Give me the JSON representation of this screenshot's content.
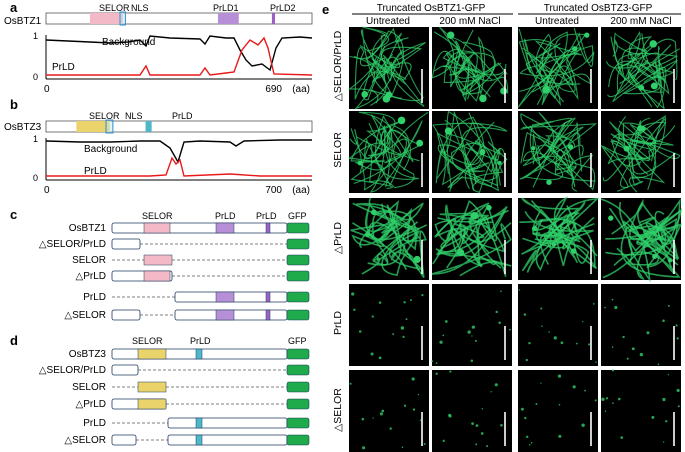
{
  "panels": {
    "a": {
      "letter": "a",
      "protein": "OsBTZ1",
      "length": 690,
      "domains": [
        {
          "label": "SELOR",
          "start": 114,
          "end": 200,
          "color": "#f4b9c6"
        },
        {
          "label": "NLS",
          "start": 192,
          "end": 206,
          "color": "#bfe6f5"
        },
        {
          "label": "PrLD1",
          "start": 446,
          "end": 500,
          "color": "#b78fd6"
        },
        {
          "label": "PrLD2",
          "start": 586,
          "end": 594,
          "color": "#9b62c5"
        }
      ],
      "legend": {
        "background": "Background",
        "prld": "PrLD"
      },
      "axis": {
        "y_top": "1",
        "y_bottom": "0",
        "x_left": "0",
        "x_right": "690",
        "unit": "(aa)"
      }
    },
    "b": {
      "letter": "b",
      "protein": "OsBTZ3",
      "length": 700,
      "domains": [
        {
          "label": "SELOR",
          "start": 80,
          "end": 168,
          "color": "#ead36a"
        },
        {
          "label": "NLS",
          "start": 158,
          "end": 176,
          "color": "#bfe6f5"
        },
        {
          "label": "PrLD",
          "start": 262,
          "end": 278,
          "color": "#4fb8c8"
        }
      ],
      "legend": {
        "background": "Background",
        "prld": "PrLD"
      },
      "axis": {
        "y_top": "1",
        "y_bottom": "0",
        "x_left": "0",
        "x_right": "700",
        "unit": "(aa)"
      }
    },
    "c": {
      "letter": "c",
      "header_labels": {
        "selor": "SELOR",
        "prld1": "PrLD",
        "prld2": "PrLD",
        "gfp": "GFP"
      },
      "constructs": [
        {
          "name": "OsBTZ1"
        },
        {
          "name": "△SELOR/PrLD"
        },
        {
          "name": "SELOR"
        },
        {
          "name": "△PrLD"
        },
        {
          "name": "PrLD"
        },
        {
          "name": "△SELOR"
        }
      ]
    },
    "d": {
      "letter": "d",
      "header_labels": {
        "selor": "SELOR",
        "prld": "PrLD",
        "gfp": "GFP"
      },
      "constructs": [
        {
          "name": "OsBTZ3"
        },
        {
          "name": "△SELOR/PrLD"
        },
        {
          "name": "SELOR"
        },
        {
          "name": "△PrLD"
        },
        {
          "name": "PrLD"
        },
        {
          "name": "△SELOR"
        }
      ]
    },
    "e": {
      "letter": "e",
      "group_headers": [
        "Truncated OsBTZ1-GFP",
        "Truncated OsBTZ3-GFP"
      ],
      "column_headers": [
        "Untreated",
        "200 mM NaCl",
        "Untreated",
        "200 mM NaCl"
      ],
      "row_labels": [
        "△SELOR/PrLD",
        "SELOR",
        "△PrLD",
        "PrLD",
        "△SELOR"
      ]
    }
  },
  "colors": {
    "background_line": "#000000",
    "prld_line": "#e8191a",
    "gfp": "#1faa4b",
    "box_outline": "#1d3a5f",
    "micrograph_bg": "#000000",
    "fluorescence": "#2fd06a"
  }
}
